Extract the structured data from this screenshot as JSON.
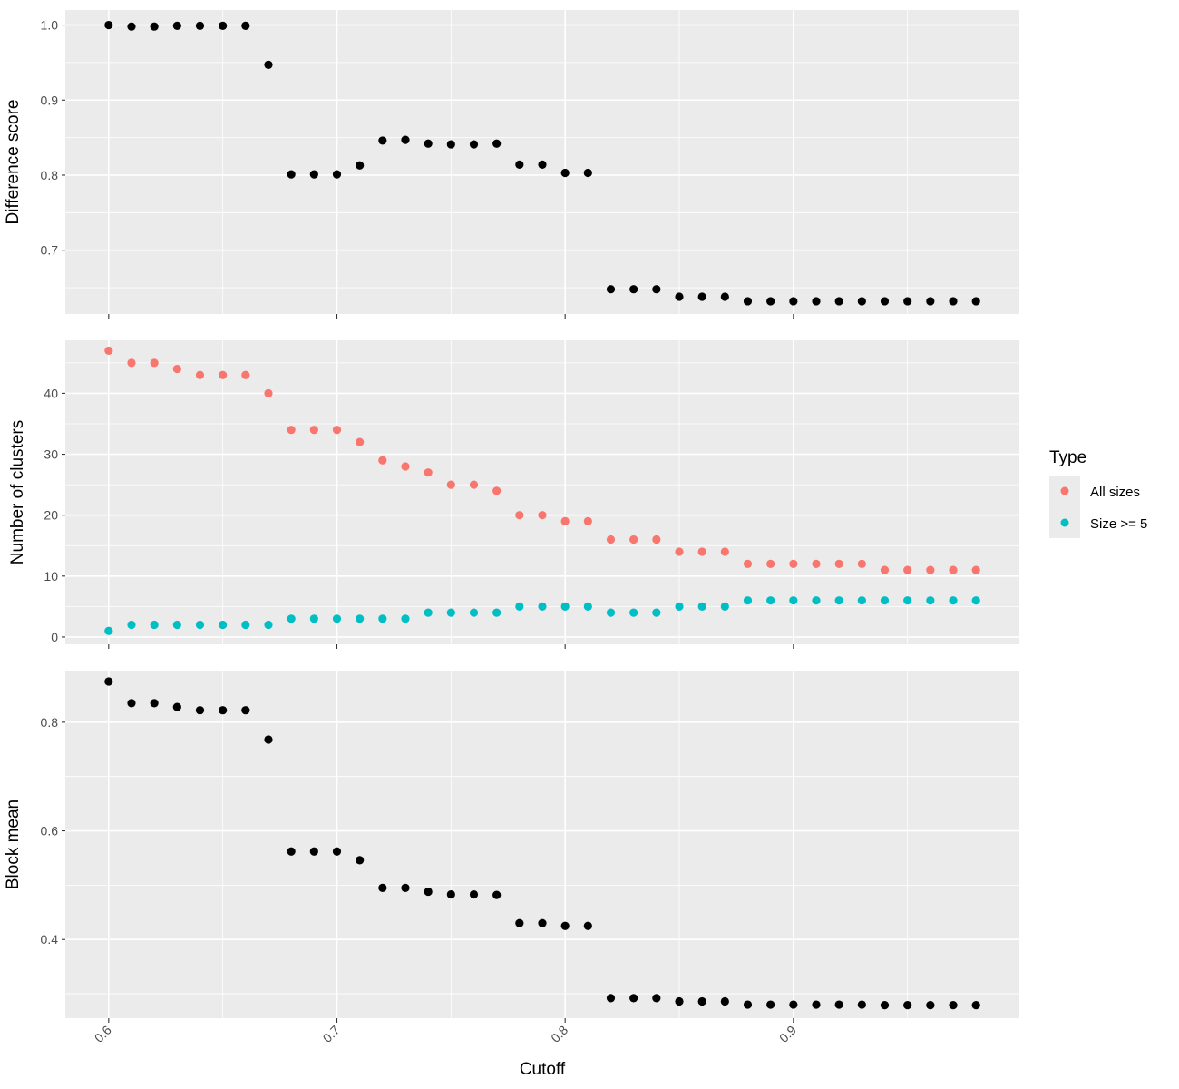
{
  "chart_data": [
    {
      "type": "scatter",
      "ylabel": "Difference score",
      "ylim": [
        0.615,
        1.02
      ],
      "yticks": [
        0.7,
        0.8,
        0.9,
        1.0
      ],
      "ytick_labels": [
        "0.7",
        "0.8",
        "0.9",
        "1.0"
      ],
      "series": [
        {
          "color": "#000000",
          "x": [
            0.6,
            0.61,
            0.62,
            0.63,
            0.64,
            0.65,
            0.66,
            0.67,
            0.68,
            0.69,
            0.7,
            0.71,
            0.72,
            0.73,
            0.74,
            0.75,
            0.76,
            0.77,
            0.78,
            0.79,
            0.8,
            0.81,
            0.82,
            0.83,
            0.84,
            0.85,
            0.86,
            0.87,
            0.88,
            0.89,
            0.9,
            0.91,
            0.92,
            0.93,
            0.94,
            0.95,
            0.96,
            0.97,
            0.98
          ],
          "values": [
            1.0,
            0.998,
            0.998,
            0.999,
            0.999,
            0.999,
            0.999,
            0.947,
            0.801,
            0.801,
            0.801,
            0.813,
            0.846,
            0.847,
            0.842,
            0.841,
            0.841,
            0.842,
            0.814,
            0.814,
            0.803,
            0.803,
            0.648,
            0.648,
            0.648,
            0.638,
            0.638,
            0.638,
            0.632,
            0.632,
            0.632,
            0.632,
            0.632,
            0.632,
            0.632,
            0.632,
            0.632,
            0.632,
            0.632
          ]
        }
      ]
    },
    {
      "type": "scatter",
      "ylabel": "Number of clusters",
      "ylim": [
        -1.2,
        48.7
      ],
      "yticks": [
        0,
        10,
        20,
        30,
        40
      ],
      "ytick_labels": [
        "0",
        "10",
        "20",
        "30",
        "40"
      ],
      "legend": {
        "title": "Type",
        "position": "right"
      },
      "series": [
        {
          "name": "All sizes",
          "color": "#F8766D",
          "x": [
            0.6,
            0.61,
            0.62,
            0.63,
            0.64,
            0.65,
            0.66,
            0.67,
            0.68,
            0.69,
            0.7,
            0.71,
            0.72,
            0.73,
            0.74,
            0.75,
            0.76,
            0.77,
            0.78,
            0.79,
            0.8,
            0.81,
            0.82,
            0.83,
            0.84,
            0.85,
            0.86,
            0.87,
            0.88,
            0.89,
            0.9,
            0.91,
            0.92,
            0.93,
            0.94,
            0.95,
            0.96,
            0.97,
            0.98
          ],
          "values": [
            47,
            45,
            45,
            44,
            43,
            43,
            43,
            40,
            34,
            34,
            34,
            32,
            29,
            28,
            27,
            25,
            25,
            24,
            20,
            20,
            19,
            19,
            16,
            16,
            16,
            14,
            14,
            14,
            12,
            12,
            12,
            12,
            12,
            12,
            11,
            11,
            11,
            11,
            11
          ]
        },
        {
          "name": "Size >= 5",
          "color": "#00BFC4",
          "x": [
            0.6,
            0.61,
            0.62,
            0.63,
            0.64,
            0.65,
            0.66,
            0.67,
            0.68,
            0.69,
            0.7,
            0.71,
            0.72,
            0.73,
            0.74,
            0.75,
            0.76,
            0.77,
            0.78,
            0.79,
            0.8,
            0.81,
            0.82,
            0.83,
            0.84,
            0.85,
            0.86,
            0.87,
            0.88,
            0.89,
            0.9,
            0.91,
            0.92,
            0.93,
            0.94,
            0.95,
            0.96,
            0.97,
            0.98
          ],
          "values": [
            1,
            2,
            2,
            2,
            2,
            2,
            2,
            2,
            3,
            3,
            3,
            3,
            3,
            3,
            4,
            4,
            4,
            4,
            5,
            5,
            5,
            5,
            4,
            4,
            4,
            5,
            5,
            5,
            6,
            6,
            6,
            6,
            6,
            6,
            6,
            6,
            6,
            6,
            6
          ]
        }
      ]
    },
    {
      "type": "scatter",
      "ylabel": "Block mean",
      "xlabel": "Cutoff",
      "ylim": [
        0.255,
        0.895
      ],
      "yticks": [
        0.4,
        0.6,
        0.8
      ],
      "ytick_labels": [
        "0.4",
        "0.6",
        "0.8"
      ],
      "series": [
        {
          "color": "#000000",
          "x": [
            0.6,
            0.61,
            0.62,
            0.63,
            0.64,
            0.65,
            0.66,
            0.67,
            0.68,
            0.69,
            0.7,
            0.71,
            0.72,
            0.73,
            0.74,
            0.75,
            0.76,
            0.77,
            0.78,
            0.79,
            0.8,
            0.81,
            0.82,
            0.83,
            0.84,
            0.85,
            0.86,
            0.87,
            0.88,
            0.89,
            0.9,
            0.91,
            0.92,
            0.93,
            0.94,
            0.95,
            0.96,
            0.97,
            0.98
          ],
          "values": [
            0.875,
            0.835,
            0.835,
            0.828,
            0.822,
            0.822,
            0.822,
            0.768,
            0.562,
            0.562,
            0.562,
            0.546,
            0.495,
            0.495,
            0.488,
            0.483,
            0.483,
            0.482,
            0.43,
            0.43,
            0.425,
            0.425,
            0.292,
            0.292,
            0.292,
            0.286,
            0.286,
            0.286,
            0.28,
            0.28,
            0.28,
            0.28,
            0.28,
            0.28,
            0.279,
            0.279,
            0.279,
            0.279,
            0.279
          ]
        }
      ]
    }
  ],
  "shared_x": {
    "xlim": [
      0.581,
      0.999
    ],
    "ticks": [
      0.6,
      0.7,
      0.8,
      0.9
    ],
    "tick_labels": [
      "0.6",
      "0.7",
      "0.8",
      "0.9"
    ],
    "label": "Cutoff"
  },
  "legend": {
    "title": "Type",
    "items": [
      {
        "label": "All sizes",
        "color": "#F8766D"
      },
      {
        "label": "Size >= 5",
        "color": "#00BFC4"
      }
    ]
  }
}
